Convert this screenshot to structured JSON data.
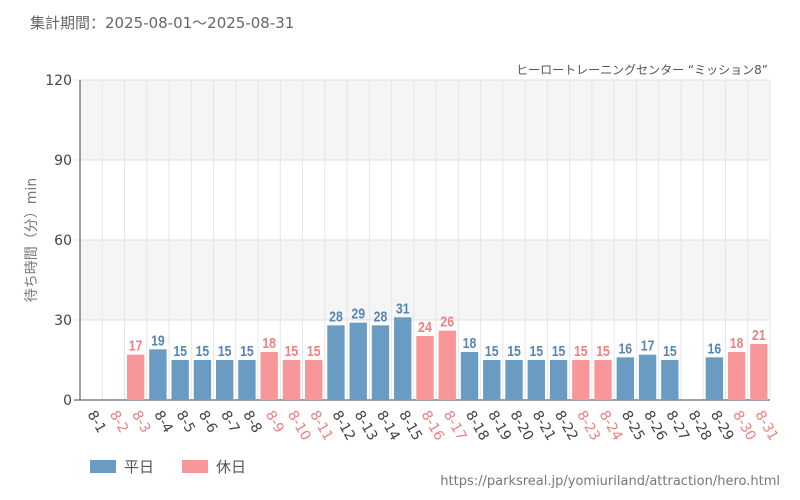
{
  "period_label": "集計期間：2025-08-01～2025-08-31",
  "source_url": "https://parksreal.jp/yomiuriland/attraction/hero.html",
  "colors": {
    "weekday": "#6a9bc3",
    "holiday": "#f7979a",
    "weekday_text": "#5585b5",
    "holiday_text": "#f08080"
  },
  "legend": [
    {
      "label": "平日",
      "kind": "weekday"
    },
    {
      "label": "休日",
      "kind": "holiday"
    }
  ],
  "chart_data": {
    "type": "bar",
    "title": "ヒーロートレーニングセンター “ミッション8”",
    "ylabel": "待ち時間（分）min",
    "ylim": [
      0,
      120
    ],
    "yticks": [
      0,
      30,
      60,
      90,
      120
    ],
    "grid": true,
    "categories": [
      "8-1",
      "8-2",
      "8-3",
      "8-4",
      "8-5",
      "8-6",
      "8-7",
      "8-8",
      "8-9",
      "8-10",
      "8-11",
      "8-12",
      "8-13",
      "8-14",
      "8-15",
      "8-16",
      "8-17",
      "8-18",
      "8-19",
      "8-20",
      "8-21",
      "8-22",
      "8-23",
      "8-24",
      "8-25",
      "8-26",
      "8-27",
      "8-28",
      "8-29",
      "8-30",
      "8-31"
    ],
    "values": [
      null,
      null,
      17,
      19,
      15,
      15,
      15,
      15,
      18,
      15,
      15,
      28,
      29,
      28,
      31,
      24,
      26,
      18,
      15,
      15,
      15,
      15,
      15,
      15,
      16,
      17,
      15,
      null,
      16,
      18,
      21
    ],
    "day_type": [
      "weekday",
      "holiday",
      "holiday",
      "weekday",
      "weekday",
      "weekday",
      "weekday",
      "weekday",
      "holiday",
      "holiday",
      "holiday",
      "weekday",
      "weekday",
      "weekday",
      "weekday",
      "holiday",
      "holiday",
      "weekday",
      "weekday",
      "weekday",
      "weekday",
      "weekday",
      "holiday",
      "holiday",
      "weekday",
      "weekday",
      "weekday",
      "weekday",
      "weekday",
      "holiday",
      "holiday"
    ]
  }
}
